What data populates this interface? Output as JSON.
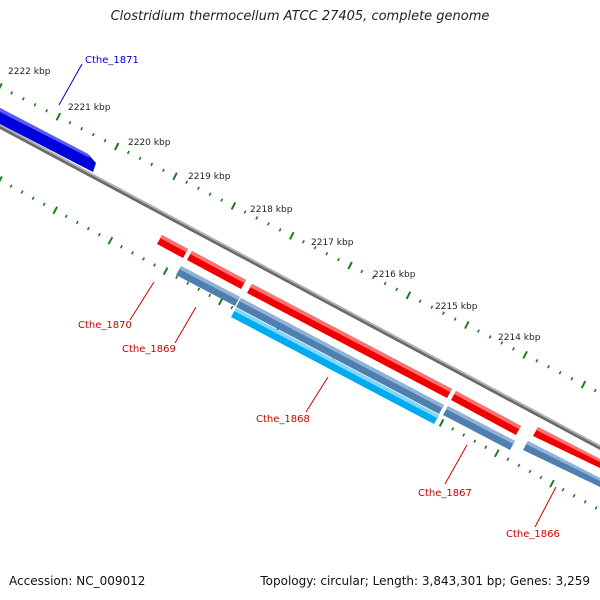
{
  "title": "Clostridium thermocellum ATCC 27405, complete genome",
  "footer": {
    "accession": "Accession: NC_009012",
    "summary": "Topology: circular; Length: 3,843,301 bp; Genes: 3,259"
  },
  "colors": {
    "forward_cds": "#ee0000",
    "reverse_cds": "#4f7fae",
    "reverse_rna": "#00aaee",
    "other_strand_cds": "#0000ee",
    "backbone": "#808080",
    "ticks": "#1f7a1f",
    "reverse_label": "#cc0000",
    "forward_label": "#0000cc"
  },
  "ruler": {
    "labels": [
      "2222 kbp",
      "2221 kbp",
      "2220 kbp",
      "2219 kbp",
      "2218 kbp",
      "2217 kbp",
      "2216 kbp",
      "2215 kbp",
      "2214 kbp"
    ]
  },
  "genes": [
    {
      "name": "Cthe_1871",
      "strand": "forward"
    },
    {
      "name": "Cthe_1870",
      "strand": "reverse"
    },
    {
      "name": "Cthe_1869",
      "strand": "reverse"
    },
    {
      "name": "Cthe_1868",
      "strand": "reverse"
    },
    {
      "name": "Cthe_1867",
      "strand": "reverse"
    },
    {
      "name": "Cthe_1866",
      "strand": "reverse"
    }
  ]
}
